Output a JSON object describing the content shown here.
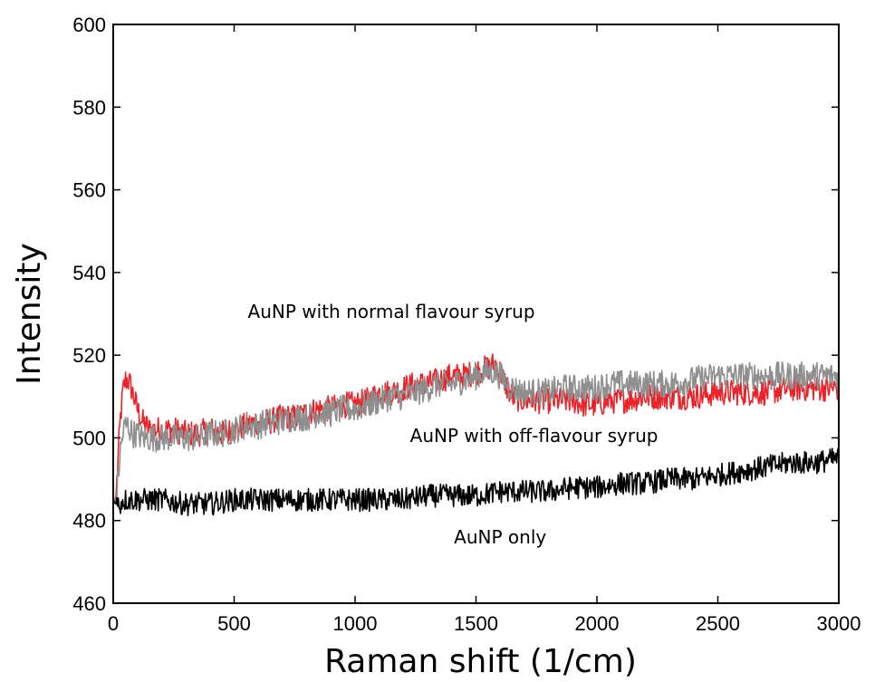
{
  "chart_data": {
    "type": "line",
    "title": "",
    "xlabel": "Raman shift (1/cm)",
    "ylabel": "Intensity",
    "xlim": [
      0,
      3000
    ],
    "ylim": [
      460,
      600
    ],
    "xticks": [
      0,
      500,
      1000,
      1500,
      2000,
      2500,
      3000
    ],
    "yticks": [
      460,
      480,
      500,
      520,
      540,
      560,
      580,
      600
    ],
    "grid": false,
    "legend": "none",
    "series": [
      {
        "color": "#e8232a",
        "x": [
          0,
          10,
          20,
          30,
          40,
          50,
          60,
          70,
          80,
          100,
          120,
          150,
          200,
          250,
          300,
          350,
          400,
          450,
          500,
          550,
          600,
          650,
          700,
          750,
          800,
          850,
          900,
          950,
          1000,
          1050,
          1100,
          1150,
          1200,
          1250,
          1300,
          1350,
          1400,
          1450,
          1500,
          1550,
          1580,
          1600,
          1630,
          1650,
          1700,
          1750,
          1800,
          1850,
          1900,
          1950,
          2000,
          2050,
          2100,
          2200,
          2300,
          2400,
          2500,
          2600,
          2700,
          2800,
          2900,
          3000
        ],
        "values": [
          486,
          484,
          495,
          505,
          511,
          514,
          514,
          513,
          511,
          507,
          504,
          502,
          502,
          502,
          501,
          501,
          502,
          501,
          502,
          503,
          504,
          504,
          505,
          505,
          506,
          507,
          507,
          508,
          508,
          509,
          511,
          511,
          512,
          513,
          513,
          514,
          515,
          515,
          516,
          517,
          518,
          516,
          512,
          510,
          509,
          509,
          509,
          509,
          509,
          508,
          508,
          509,
          509,
          510,
          510,
          510,
          511,
          511,
          511,
          512,
          512,
          512
        ]
      },
      {
        "color": "#8f8f8f",
        "x": [
          0,
          10,
          20,
          30,
          40,
          50,
          60,
          70,
          80,
          100,
          120,
          150,
          200,
          250,
          300,
          350,
          400,
          450,
          500,
          550,
          600,
          650,
          700,
          750,
          800,
          850,
          900,
          950,
          1000,
          1050,
          1100,
          1150,
          1200,
          1250,
          1300,
          1350,
          1400,
          1450,
          1500,
          1550,
          1580,
          1600,
          1630,
          1650,
          1700,
          1750,
          1800,
          1850,
          1900,
          1950,
          2000,
          2050,
          2100,
          2200,
          2300,
          2400,
          2500,
          2600,
          2700,
          2800,
          2900,
          3000
        ],
        "values": [
          486,
          484,
          490,
          497,
          501,
          503,
          503,
          502,
          501,
          501,
          500,
          500,
          500,
          500,
          500,
          500,
          501,
          501,
          502,
          503,
          503,
          504,
          504,
          505,
          505,
          506,
          506,
          507,
          507,
          508,
          509,
          510,
          510,
          511,
          512,
          513,
          513,
          514,
          515,
          516,
          516,
          515,
          513,
          512,
          511,
          511,
          511,
          512,
          512,
          512,
          512,
          513,
          513,
          513,
          513,
          514,
          515,
          515,
          515,
          515,
          515,
          515
        ]
      },
      {
        "color": "#000000",
        "x": [
          0,
          10,
          20,
          30,
          40,
          50,
          60,
          80,
          100,
          150,
          200,
          300,
          400,
          500,
          600,
          700,
          800,
          900,
          1000,
          1100,
          1200,
          1300,
          1400,
          1500,
          1600,
          1700,
          1800,
          1900,
          2000,
          2100,
          2200,
          2300,
          2400,
          2500,
          2600,
          2700,
          2800,
          2900,
          3000
        ],
        "values": [
          485,
          484,
          484,
          484,
          485,
          485,
          485,
          485,
          485,
          485,
          485,
          484,
          484,
          485,
          485,
          485,
          485,
          485,
          485,
          485,
          485,
          486,
          486,
          486,
          487,
          487,
          487,
          488,
          488,
          489,
          489,
          490,
          490,
          491,
          492,
          493,
          494,
          494,
          495
        ]
      }
    ],
    "annotations": [
      {
        "text": "AuNP with normal flavour syrup",
        "x": 1150,
        "y": 529
      },
      {
        "text": "AuNP with off-flavour syrup",
        "x": 1740,
        "y": 499
      },
      {
        "text": "AuNP only",
        "x": 1600,
        "y": 474.5
      }
    ]
  }
}
